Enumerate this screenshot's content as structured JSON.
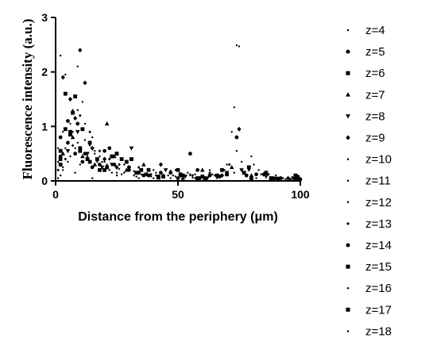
{
  "chart_data": {
    "type": "scatter",
    "title": "",
    "xlabel": "Distance from the periphery (μm)",
    "ylabel": "Fluorescence intensity (a.u.)",
    "xlim": [
      0,
      100
    ],
    "ylim": [
      0,
      3
    ],
    "xticks": [
      "0",
      "50",
      "100"
    ],
    "yticks": [
      "0",
      "1",
      "2",
      "3"
    ],
    "grid": false,
    "legend_position": "right",
    "series": [
      {
        "name": "z=4",
        "marker": "dot",
        "points": [
          [
            3,
            0.2
          ],
          [
            8,
            0.15
          ],
          [
            15,
            0.05
          ],
          [
            25,
            0.1
          ],
          [
            40,
            0.05
          ],
          [
            55,
            0.12
          ],
          [
            70,
            0.3
          ],
          [
            74,
            2.49
          ],
          [
            75,
            2.47
          ],
          [
            88,
            0.05
          ],
          [
            96,
            0.02
          ]
        ]
      },
      {
        "name": "z=5",
        "marker": "circle",
        "points": [
          [
            2,
            0.45
          ],
          [
            5,
            0.7
          ],
          [
            9,
            1.05
          ],
          [
            12,
            0.5
          ],
          [
            18,
            0.3
          ],
          [
            22,
            0.6
          ],
          [
            30,
            0.25
          ],
          [
            38,
            0.1
          ],
          [
            47,
            0.15
          ],
          [
            55,
            0.5
          ],
          [
            63,
            0.1
          ],
          [
            74,
            0.8
          ],
          [
            82,
            0.12
          ],
          [
            92,
            0.05
          ],
          [
            99,
            0.08
          ]
        ]
      },
      {
        "name": "z=6",
        "marker": "square",
        "points": [
          [
            2,
            0.3
          ],
          [
            4,
            1.6
          ],
          [
            6,
            0.9
          ],
          [
            10,
            0.55
          ],
          [
            14,
            0.35
          ],
          [
            20,
            0.2
          ],
          [
            27,
            0.4
          ],
          [
            33,
            0.15
          ],
          [
            42,
            0.08
          ],
          [
            50,
            0.2
          ],
          [
            58,
            0.05
          ],
          [
            66,
            0.1
          ],
          [
            77,
            0.15
          ],
          [
            88,
            0.05
          ],
          [
            98,
            0.1
          ]
        ]
      },
      {
        "name": "z=7",
        "marker": "triangle",
        "points": [
          [
            3,
            0.5
          ],
          [
            7,
            0.8
          ],
          [
            11,
            0.45
          ],
          [
            16,
            0.3
          ],
          [
            21,
            1.05
          ],
          [
            24,
            0.45
          ],
          [
            29,
            0.2
          ],
          [
            36,
            0.3
          ],
          [
            44,
            0.1
          ],
          [
            52,
            0.05
          ],
          [
            60,
            0.2
          ],
          [
            72,
            0.25
          ],
          [
            80,
            0.1
          ],
          [
            90,
            0.05
          ],
          [
            99,
            0.04
          ]
        ]
      },
      {
        "name": "z=8",
        "marker": "tri-down",
        "points": [
          [
            2,
            0.3
          ],
          [
            5,
            0.55
          ],
          [
            9,
            0.9
          ],
          [
            13,
            0.5
          ],
          [
            19,
            0.25
          ],
          [
            23,
            0.3
          ],
          [
            31,
            0.6
          ],
          [
            37,
            0.12
          ],
          [
            45,
            0.2
          ],
          [
            53,
            0.08
          ],
          [
            62,
            0.05
          ],
          [
            70,
            0.15
          ],
          [
            76,
            0.2
          ],
          [
            86,
            0.08
          ],
          [
            97,
            0.05
          ]
        ]
      },
      {
        "name": "z=9",
        "marker": "diamond",
        "points": [
          [
            3,
            1.9
          ],
          [
            6,
            1.5
          ],
          [
            8,
            1.15
          ],
          [
            10,
            2.4
          ],
          [
            12,
            1.8
          ],
          [
            15,
            0.6
          ],
          [
            20,
            0.4
          ],
          [
            25,
            0.25
          ],
          [
            34,
            0.15
          ],
          [
            43,
            0.3
          ],
          [
            51,
            0.1
          ],
          [
            59,
            0.05
          ],
          [
            68,
            0.1
          ],
          [
            75,
            0.95
          ],
          [
            85,
            0.12
          ],
          [
            95,
            0.05
          ]
        ]
      },
      {
        "name": "z=10",
        "marker": "dot",
        "points": [
          [
            2,
            2.3
          ],
          [
            4,
            1.95
          ],
          [
            7,
            1.3
          ],
          [
            9,
            0.7
          ],
          [
            13,
            0.45
          ],
          [
            17,
            0.35
          ],
          [
            22,
            0.2
          ],
          [
            28,
            0.15
          ],
          [
            35,
            0.12
          ],
          [
            46,
            0.1
          ],
          [
            56,
            0.06
          ],
          [
            64,
            0.12
          ],
          [
            73,
            1.35
          ],
          [
            83,
            0.2
          ],
          [
            94,
            0.03
          ]
        ]
      },
      {
        "name": "z=11",
        "marker": "dot",
        "points": [
          [
            1,
            0.6
          ],
          [
            3,
            0.9
          ],
          [
            6,
            1.05
          ],
          [
            9,
            2.1
          ],
          [
            11,
            1.45
          ],
          [
            15,
            0.8
          ],
          [
            19,
            0.35
          ],
          [
            26,
            0.22
          ],
          [
            32,
            0.18
          ],
          [
            41,
            0.1
          ],
          [
            49,
            0.08
          ],
          [
            57,
            0.12
          ],
          [
            66,
            0.05
          ],
          [
            74,
            0.55
          ],
          [
            81,
            0.3
          ],
          [
            91,
            0.06
          ]
        ]
      },
      {
        "name": "z=12",
        "marker": "dot",
        "points": [
          [
            2,
            0.1
          ],
          [
            5,
            0.35
          ],
          [
            8,
            0.6
          ],
          [
            12,
            0.75
          ],
          [
            16,
            0.5
          ],
          [
            21,
            0.3
          ],
          [
            27,
            0.12
          ],
          [
            33,
            0.08
          ],
          [
            40,
            0.2
          ],
          [
            48,
            0.1
          ],
          [
            54,
            0.15
          ],
          [
            61,
            0.05
          ],
          [
            69,
            0.2
          ],
          [
            76,
            0.35
          ],
          [
            84,
            0.12
          ],
          [
            93,
            0.05
          ]
        ]
      },
      {
        "name": "z=13",
        "marker": "diamond-small",
        "points": [
          [
            1,
            0.2
          ],
          [
            4,
            0.4
          ],
          [
            7,
            0.65
          ],
          [
            10,
            1.2
          ],
          [
            14,
            0.9
          ],
          [
            18,
            0.55
          ],
          [
            22,
            0.4
          ],
          [
            26,
            0.3
          ],
          [
            34,
            0.25
          ],
          [
            39,
            0.12
          ],
          [
            47,
            0.18
          ],
          [
            56,
            0.1
          ],
          [
            63,
            0.15
          ],
          [
            71,
            0.3
          ],
          [
            79,
            0.2
          ],
          [
            87,
            0.12
          ],
          [
            96,
            0.03
          ]
        ]
      },
      {
        "name": "z=14",
        "marker": "circle",
        "points": [
          [
            2,
            0.8
          ],
          [
            5,
            1.1
          ],
          [
            8,
            0.5
          ],
          [
            11,
            0.35
          ],
          [
            15,
            0.25
          ],
          [
            20,
            0.55
          ],
          [
            24,
            0.3
          ],
          [
            30,
            0.2
          ],
          [
            36,
            0.1
          ],
          [
            43,
            0.15
          ],
          [
            50,
            0.05
          ],
          [
            58,
            0.2
          ],
          [
            67,
            0.08
          ],
          [
            78,
            0.1
          ],
          [
            89,
            0.05
          ],
          [
            100,
            0.03
          ]
        ]
      },
      {
        "name": "z=15",
        "marker": "square",
        "points": [
          [
            2,
            0.4
          ],
          [
            4,
            0.95
          ],
          [
            7,
            1.25
          ],
          [
            10,
            0.6
          ],
          [
            13,
            0.4
          ],
          [
            18,
            0.2
          ],
          [
            23,
            0.45
          ],
          [
            29,
            0.35
          ],
          [
            35,
            0.2
          ],
          [
            42,
            0.06
          ],
          [
            51,
            0.12
          ],
          [
            60,
            0.08
          ],
          [
            68,
            0.2
          ],
          [
            79,
            0.25
          ],
          [
            86,
            0.15
          ],
          [
            98,
            0.05
          ]
        ]
      },
      {
        "name": "z=16",
        "marker": "dot",
        "points": [
          [
            1,
            0.05
          ],
          [
            3,
            0.25
          ],
          [
            6,
            0.45
          ],
          [
            10,
            0.3
          ],
          [
            14,
            0.65
          ],
          [
            18,
            0.45
          ],
          [
            23,
            0.15
          ],
          [
            28,
            0.3
          ],
          [
            34,
            0.05
          ],
          [
            41,
            0.15
          ],
          [
            49,
            0.2
          ],
          [
            57,
            0.05
          ],
          [
            65,
            0.1
          ],
          [
            73,
            0.15
          ],
          [
            82,
            0.05
          ],
          [
            92,
            0.02
          ]
        ]
      },
      {
        "name": "z=17",
        "marker": "square",
        "points": [
          [
            2,
            0.55
          ],
          [
            6,
            0.85
          ],
          [
            8,
            1.55
          ],
          [
            11,
            0.95
          ],
          [
            14,
            0.7
          ],
          [
            17,
            0.4
          ],
          [
            21,
            0.25
          ],
          [
            25,
            0.5
          ],
          [
            31,
            0.4
          ],
          [
            38,
            0.2
          ],
          [
            44,
            0.08
          ],
          [
            52,
            0.1
          ],
          [
            61,
            0.05
          ],
          [
            70,
            0.12
          ],
          [
            80,
            0.05
          ],
          [
            91,
            0.04
          ],
          [
            99,
            0.06
          ]
        ]
      },
      {
        "name": "z=18",
        "marker": "dot",
        "points": [
          [
            1,
            0.35
          ],
          [
            4,
            0.6
          ],
          [
            7,
            0.9
          ],
          [
            9,
            1.3
          ],
          [
            12,
            1.05
          ],
          [
            16,
            0.55
          ],
          [
            20,
            0.35
          ],
          [
            25,
            0.15
          ],
          [
            32,
            0.1
          ],
          [
            39,
            0.08
          ],
          [
            47,
            0.05
          ],
          [
            55,
            0.1
          ],
          [
            63,
            0.2
          ],
          [
            72,
            0.9
          ],
          [
            80,
            0.45
          ],
          [
            90,
            0.1
          ],
          [
            100,
            0.05
          ]
        ]
      }
    ]
  }
}
